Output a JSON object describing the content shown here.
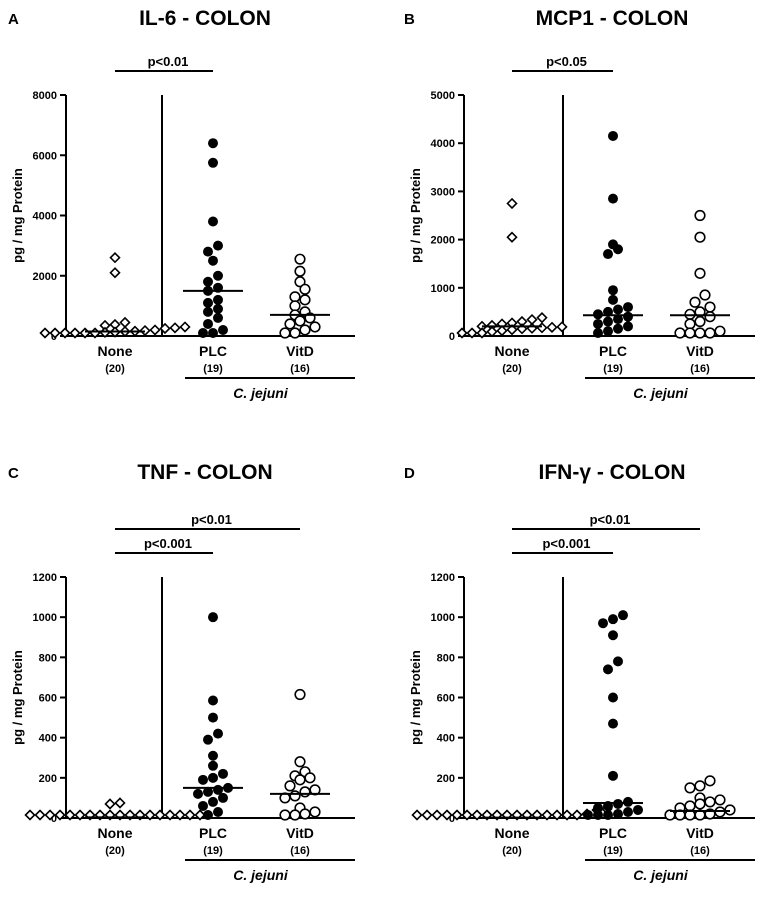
{
  "chart_data": [
    {
      "type": "scatter",
      "panel": "A",
      "title": "IL-6 - COLON",
      "ylabel": "pg / mg Protein",
      "ylim": [
        0,
        8000
      ],
      "yticks": [
        0,
        2000,
        4000,
        6000,
        8000
      ],
      "categories": [
        {
          "label": "None",
          "n": "(20)",
          "marker": "diamond-open",
          "values": [
            2600,
            2100,
            450,
            380,
            350,
            300,
            270,
            250,
            200,
            180,
            160,
            150,
            130,
            120,
            100,
            80,
            60,
            40,
            20,
            10
          ],
          "median": 150
        },
        {
          "label": "PLC",
          "n": "(19)",
          "marker": "circle-filled",
          "values": [
            6400,
            5750,
            3800,
            3000,
            2800,
            2500,
            2000,
            1800,
            1600,
            1500,
            1200,
            1100,
            900,
            800,
            600,
            400,
            200,
            100,
            30
          ],
          "median": 1500
        },
        {
          "label": "VitD",
          "n": "(16)",
          "marker": "circle-open",
          "values": [
            2550,
            2150,
            1800,
            1550,
            1300,
            1200,
            1000,
            800,
            700,
            600,
            500,
            400,
            300,
            200,
            50,
            10
          ],
          "median": 700
        }
      ],
      "group_label": "C. jejuni",
      "significance": [
        {
          "from": "None",
          "to": "PLC",
          "label": "p<0.01"
        }
      ]
    },
    {
      "type": "scatter",
      "panel": "B",
      "title": "MCP1 - COLON",
      "ylabel": "pg / mg Protein",
      "ylim": [
        0,
        5000
      ],
      "yticks": [
        0,
        1000,
        2000,
        3000,
        4000,
        5000
      ],
      "categories": [
        {
          "label": "None",
          "n": "(20)",
          "marker": "diamond-open",
          "values": [
            2750,
            2050,
            380,
            340,
            300,
            270,
            250,
            220,
            200,
            190,
            180,
            170,
            160,
            150,
            130,
            110,
            90,
            60,
            30,
            10
          ],
          "median": 200
        },
        {
          "label": "PLC",
          "n": "(19)",
          "marker": "circle-filled",
          "values": [
            4150,
            2850,
            1900,
            1800,
            1700,
            950,
            750,
            600,
            550,
            500,
            450,
            400,
            350,
            300,
            250,
            200,
            150,
            100,
            30
          ],
          "median": 430
        },
        {
          "label": "VitD",
          "n": "(16)",
          "marker": "circle-open",
          "values": [
            2500,
            2050,
            1300,
            850,
            700,
            600,
            500,
            450,
            400,
            300,
            250,
            100,
            50,
            20,
            10,
            5
          ],
          "median": 430
        }
      ],
      "group_label": "C. jejuni",
      "significance": [
        {
          "from": "None",
          "to": "PLC",
          "label": "p<0.05"
        }
      ]
    },
    {
      "type": "scatter",
      "panel": "C",
      "title": "TNF - COLON",
      "ylabel": "pg / mg Protein",
      "ylim": [
        0,
        1200
      ],
      "yticks": [
        0,
        200,
        400,
        600,
        800,
        1000,
        1200
      ],
      "categories": [
        {
          "label": "None",
          "n": "(20)",
          "marker": "diamond-open",
          "values": [
            75,
            70,
            10,
            8,
            6,
            5,
            4,
            3,
            2,
            1,
            1,
            1,
            1,
            1,
            1,
            1,
            1,
            1,
            1,
            1
          ],
          "median": 3
        },
        {
          "label": "PLC",
          "n": "(19)",
          "marker": "circle-filled",
          "values": [
            1000,
            585,
            500,
            420,
            390,
            310,
            260,
            220,
            200,
            190,
            150,
            140,
            130,
            120,
            100,
            80,
            60,
            30,
            10
          ],
          "median": 150
        },
        {
          "label": "VitD",
          "n": "(16)",
          "marker": "circle-open",
          "values": [
            615,
            280,
            230,
            210,
            200,
            190,
            160,
            140,
            130,
            110,
            100,
            50,
            30,
            20,
            10,
            5
          ],
          "median": 120
        }
      ],
      "group_label": "C. jejuni",
      "significance": [
        {
          "from": "None",
          "to": "VitD",
          "label": "p<0.01"
        },
        {
          "from": "None",
          "to": "PLC",
          "label": "p<0.001"
        }
      ]
    },
    {
      "type": "scatter",
      "panel": "D",
      "title": "IFN-γ - COLON",
      "ylabel": "pg / mg Protein",
      "ylim": [
        0,
        1200
      ],
      "yticks": [
        0,
        200,
        400,
        600,
        800,
        1000,
        1200
      ],
      "categories": [
        {
          "label": "None",
          "n": "(20)",
          "marker": "diamond-open",
          "values": [
            45,
            40,
            20,
            10,
            8,
            6,
            5,
            4,
            3,
            2,
            1,
            1,
            1,
            1,
            1,
            1,
            1,
            1,
            1,
            1
          ],
          "median": 2
        },
        {
          "label": "PLC",
          "n": "(19)",
          "marker": "circle-filled",
          "values": [
            1010,
            990,
            970,
            910,
            780,
            740,
            600,
            470,
            210,
            80,
            70,
            60,
            50,
            40,
            30,
            20,
            15,
            10,
            5
          ],
          "median": 75
        },
        {
          "label": "VitD",
          "n": "(16)",
          "marker": "circle-open",
          "values": [
            185,
            160,
            150,
            100,
            90,
            80,
            70,
            60,
            50,
            40,
            30,
            20,
            15,
            10,
            5,
            2
          ],
          "median": 35
        }
      ],
      "group_label": "C. jejuni",
      "significance": [
        {
          "from": "None",
          "to": "VitD",
          "label": "p<0.01"
        },
        {
          "from": "None",
          "to": "PLC",
          "label": "p<0.001"
        }
      ]
    }
  ]
}
